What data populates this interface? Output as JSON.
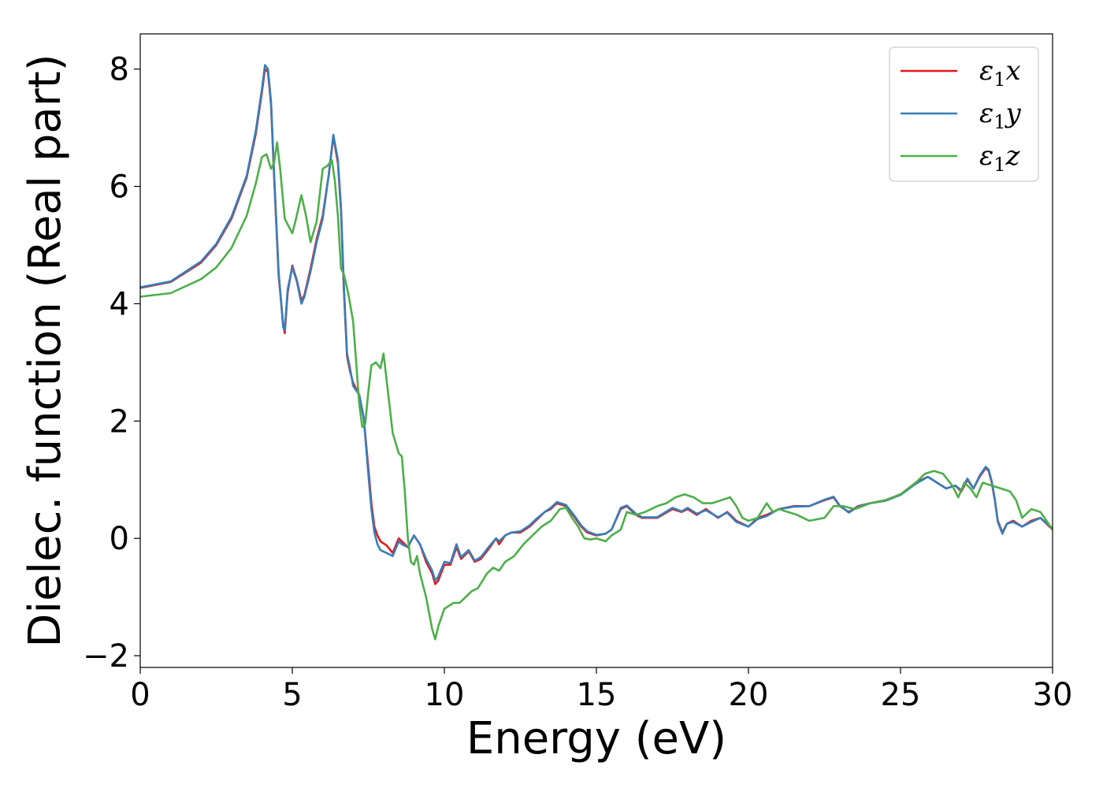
{
  "chart_data": {
    "type": "line",
    "xlabel": "Energy (eV)",
    "ylabel": "Dielec. function (Real part)",
    "xlim": [
      0,
      30
    ],
    "ylim": [
      -2.2,
      8.6
    ],
    "xticks": [
      0,
      5,
      10,
      15,
      20,
      25,
      30
    ],
    "yticks": [
      -2,
      0,
      2,
      4,
      6,
      8
    ],
    "xtick_labels": [
      "0",
      "5",
      "10",
      "15",
      "20",
      "25",
      "30"
    ],
    "ytick_labels": [
      "−2",
      "0",
      "2",
      "4",
      "6",
      "8"
    ],
    "grid": false,
    "legend_position": "top-right",
    "series": [
      {
        "name": "ε₁x",
        "legend_base": "ε",
        "legend_sub": "1",
        "legend_var": "x",
        "color": "#e41a1c",
        "x": [
          0,
          1,
          2,
          2.5,
          3,
          3.5,
          3.8,
          4.0,
          4.1,
          4.2,
          4.3,
          4.4,
          4.55,
          4.7,
          4.75,
          4.85,
          5.0,
          5.15,
          5.3,
          5.4,
          5.6,
          5.8,
          6.0,
          6.2,
          6.35,
          6.5,
          6.6,
          6.7,
          6.8,
          6.9,
          7.0,
          7.2,
          7.35,
          7.5,
          7.6,
          7.7,
          7.8,
          7.9,
          8.1,
          8.3,
          8.5,
          8.6,
          8.8,
          9.0,
          9.2,
          9.4,
          9.6,
          9.7,
          9.8,
          10.0,
          10.2,
          10.4,
          10.55,
          10.8,
          11.0,
          11.2,
          11.5,
          11.7,
          11.8,
          12.0,
          12.2,
          12.5,
          12.8,
          13.0,
          13.3,
          13.5,
          13.7,
          14.0,
          14.3,
          14.5,
          14.7,
          15.0,
          15.3,
          15.5,
          15.8,
          16.0,
          16.3,
          16.5,
          17.0,
          17.5,
          17.8,
          18.0,
          18.3,
          18.6,
          19.0,
          19.3,
          19.6,
          20.0,
          20.3,
          20.6,
          21.0,
          21.5,
          22.0,
          22.5,
          22.8,
          23.0,
          23.3,
          23.6,
          24.0,
          24.5,
          25.0,
          25.5,
          25.9,
          26.2,
          26.5,
          26.8,
          27.0,
          27.2,
          27.4,
          27.6,
          27.8,
          27.9,
          28.0,
          28.1,
          28.2,
          28.35,
          28.5,
          28.7,
          29.0,
          29.3,
          29.6,
          30.0
        ],
        "y": [
          4.27,
          4.37,
          4.7,
          5.0,
          5.45,
          6.15,
          6.9,
          7.6,
          8.0,
          7.95,
          7.4,
          6.2,
          4.5,
          3.65,
          3.5,
          4.2,
          4.65,
          4.4,
          4.05,
          4.15,
          4.6,
          5.1,
          5.5,
          6.2,
          6.85,
          6.4,
          5.6,
          4.2,
          3.1,
          2.85,
          2.65,
          2.45,
          2.05,
          1.2,
          0.6,
          0.2,
          0.05,
          -0.05,
          -0.12,
          -0.25,
          0.0,
          -0.05,
          -0.15,
          0.05,
          -0.1,
          -0.4,
          -0.6,
          -0.78,
          -0.72,
          -0.45,
          -0.45,
          -0.15,
          -0.35,
          -0.22,
          -0.4,
          -0.35,
          -0.15,
          0.0,
          -0.1,
          0.05,
          0.1,
          0.1,
          0.2,
          0.3,
          0.45,
          0.5,
          0.6,
          0.55,
          0.35,
          0.2,
          0.1,
          0.05,
          0.08,
          0.15,
          0.5,
          0.55,
          0.4,
          0.35,
          0.35,
          0.5,
          0.45,
          0.5,
          0.4,
          0.5,
          0.35,
          0.45,
          0.3,
          0.2,
          0.35,
          0.4,
          0.5,
          0.55,
          0.55,
          0.65,
          0.7,
          0.55,
          0.45,
          0.55,
          0.6,
          0.65,
          0.75,
          0.95,
          1.05,
          0.95,
          0.85,
          0.9,
          0.8,
          1.0,
          0.85,
          1.05,
          1.2,
          1.15,
          0.95,
          0.65,
          0.3,
          0.1,
          0.25,
          0.3,
          0.2,
          0.3,
          0.35,
          0.15
        ]
      },
      {
        "name": "ε₁y",
        "legend_base": "ε",
        "legend_sub": "1",
        "legend_var": "y",
        "color": "#377eb8",
        "x": [
          0,
          1,
          2,
          2.5,
          3,
          3.5,
          3.8,
          4.0,
          4.1,
          4.2,
          4.3,
          4.4,
          4.55,
          4.7,
          4.75,
          4.85,
          5.0,
          5.15,
          5.3,
          5.4,
          5.6,
          5.8,
          6.0,
          6.2,
          6.35,
          6.5,
          6.6,
          6.7,
          6.8,
          6.9,
          7.0,
          7.2,
          7.35,
          7.5,
          7.6,
          7.7,
          7.8,
          7.9,
          8.1,
          8.3,
          8.5,
          8.6,
          8.8,
          9.0,
          9.2,
          9.4,
          9.6,
          9.7,
          9.8,
          10.0,
          10.2,
          10.4,
          10.55,
          10.8,
          11.0,
          11.2,
          11.5,
          11.7,
          11.8,
          12.0,
          12.2,
          12.5,
          12.8,
          13.0,
          13.3,
          13.5,
          13.7,
          14.0,
          14.3,
          14.5,
          14.7,
          15.0,
          15.3,
          15.5,
          15.8,
          16.0,
          16.3,
          16.5,
          17.0,
          17.5,
          17.8,
          18.0,
          18.3,
          18.6,
          19.0,
          19.3,
          19.6,
          20.0,
          20.3,
          20.6,
          21.0,
          21.5,
          22.0,
          22.5,
          22.8,
          23.0,
          23.3,
          23.6,
          24.0,
          24.5,
          25.0,
          25.5,
          25.9,
          26.2,
          26.5,
          26.8,
          27.0,
          27.2,
          27.4,
          27.6,
          27.8,
          27.9,
          28.0,
          28.1,
          28.2,
          28.35,
          28.5,
          28.7,
          29.0,
          29.3,
          29.6,
          30.0
        ],
        "y": [
          4.28,
          4.38,
          4.72,
          5.02,
          5.48,
          6.18,
          6.95,
          7.65,
          8.07,
          8.0,
          7.45,
          6.25,
          4.55,
          3.6,
          3.55,
          4.25,
          4.62,
          4.38,
          4.0,
          4.12,
          4.55,
          5.05,
          5.45,
          6.2,
          6.88,
          6.45,
          5.65,
          4.25,
          3.15,
          2.9,
          2.6,
          2.45,
          2.05,
          1.1,
          0.5,
          0.1,
          -0.1,
          -0.2,
          -0.25,
          -0.3,
          -0.05,
          -0.1,
          -0.15,
          0.05,
          -0.1,
          -0.35,
          -0.55,
          -0.72,
          -0.65,
          -0.4,
          -0.42,
          -0.1,
          -0.32,
          -0.2,
          -0.38,
          -0.32,
          -0.12,
          0.0,
          -0.05,
          0.05,
          0.1,
          0.12,
          0.22,
          0.32,
          0.45,
          0.52,
          0.62,
          0.57,
          0.37,
          0.22,
          0.12,
          0.06,
          0.08,
          0.15,
          0.52,
          0.56,
          0.42,
          0.36,
          0.36,
          0.52,
          0.46,
          0.52,
          0.42,
          0.48,
          0.36,
          0.44,
          0.28,
          0.2,
          0.33,
          0.38,
          0.5,
          0.54,
          0.55,
          0.66,
          0.71,
          0.56,
          0.44,
          0.54,
          0.6,
          0.64,
          0.74,
          0.93,
          1.05,
          0.95,
          0.85,
          0.9,
          0.82,
          1.02,
          0.85,
          1.07,
          1.22,
          1.17,
          0.97,
          0.67,
          0.28,
          0.08,
          0.25,
          0.28,
          0.2,
          0.28,
          0.35,
          0.17
        ]
      },
      {
        "name": "ε₁z",
        "legend_base": "ε",
        "legend_sub": "1",
        "legend_var": "z",
        "color": "#4daf4a",
        "x": [
          0,
          1,
          2,
          2.5,
          3,
          3.5,
          3.8,
          4.0,
          4.15,
          4.3,
          4.4,
          4.5,
          4.6,
          4.75,
          5.0,
          5.1,
          5.3,
          5.45,
          5.6,
          5.8,
          6.0,
          6.15,
          6.3,
          6.4,
          6.5,
          6.6,
          6.7,
          6.85,
          7.0,
          7.1,
          7.2,
          7.3,
          7.4,
          7.5,
          7.6,
          7.75,
          7.9,
          8.0,
          8.1,
          8.3,
          8.5,
          8.6,
          8.7,
          8.8,
          8.9,
          9.0,
          9.1,
          9.2,
          9.4,
          9.6,
          9.7,
          9.8,
          10.0,
          10.3,
          10.5,
          10.7,
          10.9,
          11.1,
          11.4,
          11.6,
          11.8,
          12.0,
          12.3,
          12.6,
          12.9,
          13.2,
          13.5,
          13.8,
          14.0,
          14.2,
          14.4,
          14.6,
          14.8,
          15.0,
          15.3,
          15.5,
          15.8,
          16.0,
          16.3,
          16.6,
          17.0,
          17.3,
          17.6,
          17.9,
          18.2,
          18.5,
          18.8,
          19.1,
          19.4,
          19.6,
          19.8,
          20.0,
          20.3,
          20.6,
          20.8,
          21.0,
          21.3,
          21.6,
          22.0,
          22.5,
          22.8,
          23.1,
          23.5,
          24.0,
          24.5,
          25.0,
          25.5,
          25.8,
          26.1,
          26.4,
          26.7,
          26.9,
          27.1,
          27.3,
          27.5,
          27.7,
          28.0,
          28.3,
          28.6,
          28.8,
          29.0,
          29.3,
          29.6,
          30.0
        ],
        "y": [
          4.12,
          4.18,
          4.42,
          4.62,
          4.95,
          5.5,
          6.05,
          6.5,
          6.55,
          6.3,
          6.4,
          6.75,
          6.3,
          5.45,
          5.2,
          5.4,
          5.85,
          5.5,
          5.05,
          5.4,
          6.3,
          6.35,
          6.45,
          6.1,
          5.5,
          4.6,
          4.5,
          4.15,
          3.7,
          3.0,
          2.3,
          1.9,
          1.95,
          2.5,
          2.95,
          3.0,
          2.9,
          3.15,
          2.7,
          1.8,
          1.45,
          1.4,
          0.8,
          0.0,
          -0.4,
          -0.45,
          -0.3,
          -0.6,
          -1.0,
          -1.55,
          -1.72,
          -1.5,
          -1.2,
          -1.1,
          -1.1,
          -1.0,
          -0.9,
          -0.85,
          -0.6,
          -0.5,
          -0.55,
          -0.4,
          -0.3,
          -0.1,
          0.05,
          0.2,
          0.3,
          0.5,
          0.52,
          0.35,
          0.2,
          0.0,
          -0.02,
          0.0,
          -0.05,
          0.05,
          0.15,
          0.45,
          0.4,
          0.45,
          0.55,
          0.6,
          0.7,
          0.75,
          0.7,
          0.6,
          0.6,
          0.65,
          0.7,
          0.55,
          0.35,
          0.3,
          0.35,
          0.6,
          0.45,
          0.5,
          0.45,
          0.4,
          0.3,
          0.35,
          0.55,
          0.55,
          0.5,
          0.6,
          0.65,
          0.75,
          0.95,
          1.1,
          1.15,
          1.1,
          0.9,
          0.7,
          0.95,
          0.85,
          0.7,
          0.95,
          0.9,
          0.85,
          0.8,
          0.65,
          0.35,
          0.5,
          0.45,
          0.15
        ]
      }
    ]
  }
}
